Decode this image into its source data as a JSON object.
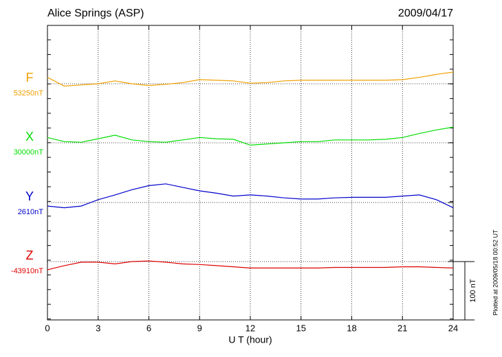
{
  "chart_data": {
    "type": "line",
    "title": "Alice Springs (ASP)",
    "date": "2009/04/17",
    "x_label": "U T (hour)",
    "footnote": "Plotted at 2009/05/18 00:52 UT",
    "xlim": [
      0,
      24
    ],
    "xticks": [
      0,
      3,
      6,
      9,
      12,
      15,
      18,
      21,
      24
    ],
    "grid": true,
    "scale_bar": {
      "value": 100,
      "label": "100 nT"
    },
    "x": [
      0,
      1,
      2,
      3,
      4,
      5,
      6,
      7,
      8,
      9,
      10,
      11,
      12,
      13,
      14,
      15,
      16,
      17,
      18,
      19,
      20,
      21,
      22,
      23,
      24
    ],
    "series": [
      {
        "name": "F",
        "color": "#f0a000",
        "baseline": {
          "value": 53250,
          "label": "53250nT"
        },
        "values": [
          53261,
          53246,
          53248,
          53250,
          53255,
          53250,
          53247,
          53249,
          53252,
          53257,
          53256,
          53255,
          53251,
          53252,
          53255,
          53256,
          53256,
          53256,
          53256,
          53256,
          53256,
          53257,
          53261,
          53266,
          53270
        ]
      },
      {
        "name": "X",
        "color": "#00dd00",
        "baseline": {
          "value": 30000,
          "label": "30000nT"
        },
        "values": [
          30009,
          30002,
          30001,
          30007,
          30013,
          30005,
          30002,
          30001,
          30005,
          30009,
          30007,
          30006,
          29996,
          29998,
          30000,
          30002,
          30002,
          30005,
          30005,
          30005,
          30006,
          30009,
          30016,
          30022,
          30027
        ]
      },
      {
        "name": "Y",
        "color": "#0000cc",
        "baseline": {
          "value": 2610,
          "label": "2610nT"
        },
        "values": [
          2604,
          2601,
          2604,
          2615,
          2623,
          2632,
          2639,
          2642,
          2636,
          2630,
          2626,
          2621,
          2623,
          2621,
          2618,
          2616,
          2616,
          2618,
          2619,
          2619,
          2619,
          2621,
          2623,
          2615,
          2601
        ]
      },
      {
        "name": "Z",
        "color": "#dd0000",
        "baseline": {
          "value": -43910,
          "label": "-43910nT"
        },
        "values": [
          -43924,
          -43917,
          -43911,
          -43911,
          -43914,
          -43910,
          -43909,
          -43911,
          -43914,
          -43915,
          -43917,
          -43919,
          -43921,
          -43921,
          -43921,
          -43921,
          -43921,
          -43920,
          -43920,
          -43920,
          -43920,
          -43919,
          -43919,
          -43920,
          -43921
        ]
      }
    ]
  }
}
